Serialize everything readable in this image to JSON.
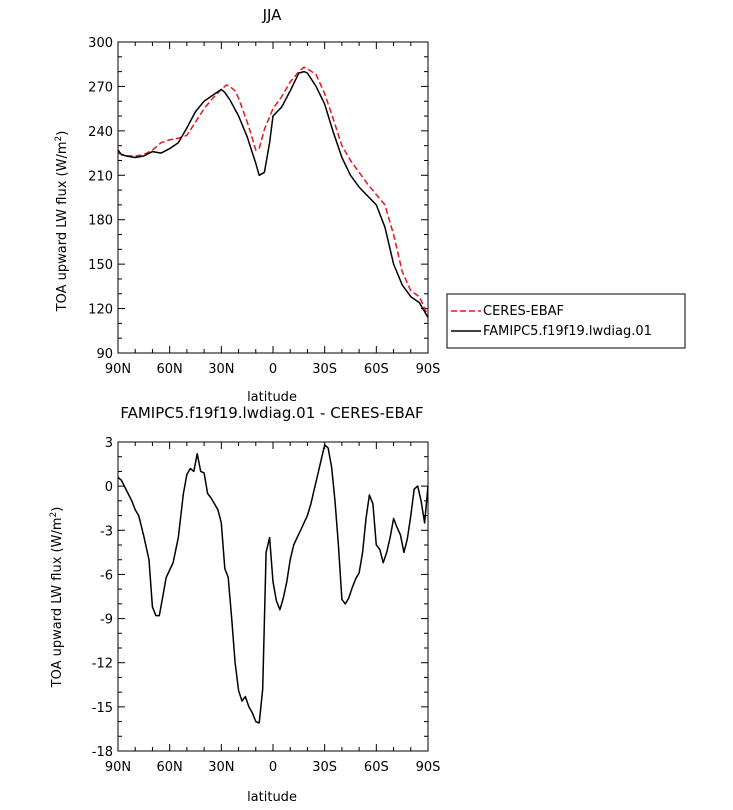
{
  "chart_data": [
    {
      "type": "line",
      "title": "JJA",
      "xlabel": "latitude",
      "ylabel": "TOA upward LW flux (W/m²)",
      "ylabel_parts": {
        "base": "TOA upward LW flux (W/m",
        "sup": "2",
        "close": ")"
      },
      "xlim": [
        90,
        -90
      ],
      "ylim": [
        90,
        300
      ],
      "x_ticks": [
        90,
        60,
        30,
        0,
        -30,
        -60,
        -90
      ],
      "x_tick_labels": [
        "90N",
        "60N",
        "30N",
        "0",
        "30S",
        "60S",
        "90S"
      ],
      "y_ticks": [
        90,
        120,
        150,
        180,
        210,
        240,
        270,
        300
      ],
      "y_tick_labels": [
        "90",
        "120",
        "150",
        "180",
        "210",
        "240",
        "270",
        "300"
      ],
      "legend_position": "right",
      "series": [
        {
          "name": "CERES-EBAF",
          "color": "#e8161c",
          "dash": "dashed",
          "x": [
            90,
            85,
            80,
            75,
            70,
            65,
            60,
            55,
            50,
            45,
            40,
            35,
            30,
            27,
            25,
            22,
            20,
            15,
            12,
            10,
            8,
            5,
            0,
            -5,
            -10,
            -15,
            -18,
            -20,
            -25,
            -30,
            -35,
            -40,
            -45,
            -50,
            -55,
            -60,
            -65,
            -70,
            -75,
            -80,
            -85,
            -90
          ],
          "y": [
            225,
            223,
            223,
            224,
            227,
            232,
            234,
            235,
            237,
            246,
            255,
            262,
            268,
            271,
            270,
            267,
            262,
            246,
            235,
            227,
            228,
            241,
            255,
            263,
            273,
            280,
            283,
            282,
            278,
            265,
            248,
            230,
            220,
            212,
            204,
            197,
            190,
            170,
            145,
            132,
            128,
            115
          ]
        },
        {
          "name": "FAMIPC5.f19f19.lwdiag.01",
          "color": "#000000",
          "dash": "solid",
          "x": [
            90,
            88,
            85,
            80,
            75,
            70,
            65,
            60,
            55,
            50,
            45,
            40,
            35,
            30,
            28,
            25,
            20,
            15,
            10,
            8,
            5,
            2,
            0,
            -5,
            -10,
            -15,
            -18,
            -20,
            -25,
            -30,
            -35,
            -40,
            -45,
            -50,
            -55,
            -60,
            -65,
            -70,
            -75,
            -80,
            -85,
            -90
          ],
          "y": [
            227,
            224,
            223,
            222,
            223,
            226,
            225,
            228,
            232,
            242,
            253,
            260,
            264,
            268,
            266,
            261,
            250,
            236,
            218,
            210,
            212,
            232,
            250,
            256,
            267,
            279,
            280,
            279,
            270,
            258,
            239,
            222,
            210,
            202,
            196,
            190,
            175,
            150,
            136,
            128,
            124,
            114
          ]
        }
      ]
    },
    {
      "type": "line",
      "title": "FAMIPC5.f19f19.lwdiag.01 - CERES-EBAF",
      "xlabel": "latitude",
      "ylabel": "TOA upward LW flux (W/m²)",
      "ylabel_parts": {
        "base": "TOA upward LW flux (W/m",
        "sup": "2",
        "close": ")"
      },
      "xlim": [
        90,
        -90
      ],
      "ylim": [
        -18,
        3
      ],
      "x_ticks": [
        90,
        60,
        30,
        0,
        -30,
        -60,
        -90
      ],
      "x_tick_labels": [
        "90N",
        "60N",
        "30N",
        "0",
        "30S",
        "60S",
        "90S"
      ],
      "y_ticks": [
        -18,
        -15,
        -12,
        -9,
        -6,
        -3,
        0,
        3
      ],
      "y_tick_labels": [
        "-18",
        "-15",
        "-12",
        "-9",
        "-6",
        "-3",
        "0",
        "3"
      ],
      "series": [
        {
          "color": "#000000",
          "dash": "solid",
          "x": [
            90,
            88,
            85,
            82,
            80,
            78,
            75,
            72,
            70,
            68,
            66,
            64,
            62,
            60,
            58,
            55,
            52,
            50,
            48,
            46,
            44,
            42,
            40,
            38,
            36,
            34,
            32,
            30,
            28,
            26,
            24,
            22,
            20,
            18,
            16,
            14,
            12,
            10,
            8,
            6,
            4,
            2,
            0,
            -2,
            -4,
            -6,
            -8,
            -10,
            -12,
            -14,
            -16,
            -18,
            -20,
            -22,
            -24,
            -26,
            -28,
            -30,
            -32,
            -34,
            -36,
            -38,
            -40,
            -42,
            -44,
            -46,
            -48,
            -50,
            -52,
            -54,
            -56,
            -58,
            -60,
            -62,
            -64,
            -66,
            -68,
            -70,
            -72,
            -74,
            -76,
            -78,
            -80,
            -82,
            -84,
            -86,
            -88,
            -90
          ],
          "y": [
            0.6,
            0.4,
            -0.3,
            -1.0,
            -1.6,
            -2.0,
            -3.4,
            -5.0,
            -8.2,
            -8.8,
            -8.8,
            -7.5,
            -6.2,
            -5.7,
            -5.2,
            -3.5,
            -0.5,
            0.8,
            1.2,
            1.0,
            2.2,
            1.0,
            0.9,
            -0.5,
            -0.8,
            -1.2,
            -1.6,
            -2.5,
            -5.6,
            -6.2,
            -9.0,
            -12.0,
            -13.9,
            -14.6,
            -14.3,
            -15.0,
            -15.4,
            -16.0,
            -16.1,
            -13.8,
            -4.5,
            -3.5,
            -6.5,
            -7.8,
            -8.4,
            -7.6,
            -6.5,
            -5.0,
            -4.0,
            -3.5,
            -3.0,
            -2.5,
            -2.0,
            -1.2,
            -0.2,
            0.8,
            1.8,
            2.8,
            2.6,
            1.3,
            -1.0,
            -4.0,
            -7.7,
            -8.0,
            -7.6,
            -6.9,
            -6.3,
            -5.9,
            -4.5,
            -2.2,
            -0.6,
            -1.2,
            -4.0,
            -4.3,
            -5.2,
            -4.5,
            -3.5,
            -2.2,
            -2.8,
            -3.3,
            -4.5,
            -3.6,
            -2.0,
            -0.2,
            0.0,
            -1.0,
            -2.5,
            0.0
          ]
        }
      ]
    }
  ]
}
